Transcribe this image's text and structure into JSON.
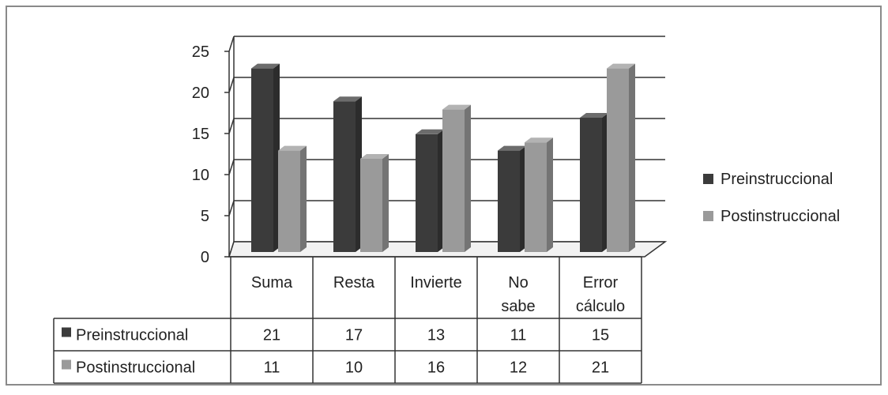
{
  "chart_data": {
    "type": "bar",
    "title": "",
    "xlabel": "",
    "ylabel": "",
    "ylim": [
      0,
      25
    ],
    "yticks": [
      0,
      5,
      10,
      15,
      20,
      25
    ],
    "grid": true,
    "legend_position": "right",
    "categories": [
      {
        "key": "suma",
        "lines": [
          "Suma"
        ]
      },
      {
        "key": "resta",
        "lines": [
          "Resta"
        ]
      },
      {
        "key": "invierte",
        "lines": [
          "Invierte"
        ]
      },
      {
        "key": "no-sabe",
        "lines": [
          "No",
          "sabe"
        ]
      },
      {
        "key": "error-calculo",
        "lines": [
          "Error",
          "cálculo"
        ]
      }
    ],
    "series": [
      {
        "name": "Preinstruccional",
        "color": "#3b3b3b",
        "values": [
          21,
          17,
          13,
          11,
          15
        ]
      },
      {
        "name": "Postinstruccional",
        "color": "#9a9a9a",
        "values": [
          11,
          10,
          16,
          12,
          21
        ]
      }
    ],
    "data_table": true
  }
}
